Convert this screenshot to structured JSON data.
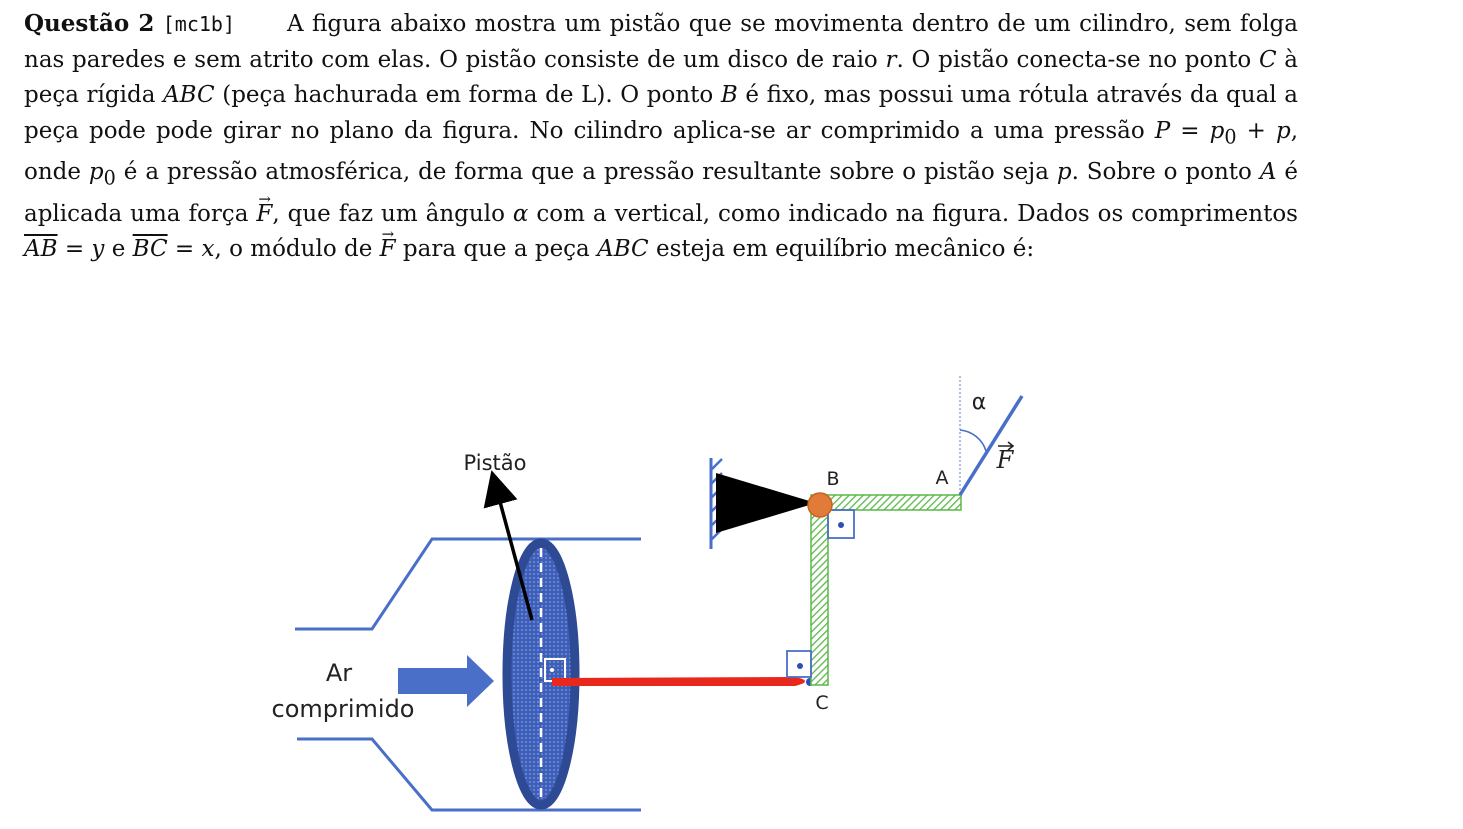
{
  "question": {
    "title": "Questão 2",
    "code": "[mc1b]",
    "t1": "A figura abaixo mostra um pistão que se movimenta dentro de um cilindro, sem folga nas paredes e sem atrito com elas. O pistão consiste de um disco de raio ",
    "v_r": "r",
    "t2": ". O pistão conecta-se no ponto ",
    "v_C": "C",
    "t3": " à peça rígida ",
    "v_ABC": "ABC",
    "t4": " (peça hachurada em forma de L). O ponto ",
    "v_B": "B",
    "t5": " é fixo, mas possui uma rótula através da qual a peça pode pode girar no plano da figura. No cilindro aplica-se ar comprimido a uma pressão ",
    "eq_P": "P = p",
    "sub0": "0",
    "eq_P2": " + p",
    "t6": ", onde ",
    "v_p0": "p",
    "sub0b": "0",
    "t7": " é a pressão atmosférica, de forma que a pressão resultante sobre o pistão seja ",
    "v_p": "p",
    "t8": ". Sobre o ponto ",
    "v_A": "A",
    "t9": " é aplicada uma força ",
    "v_F": "F",
    "t10": ", que faz um ângulo ",
    "v_alpha": "α",
    "t11": " com a vertical, como indicado na figura. Dados os comprimentos ",
    "v_AB": "AB",
    "t12": " = ",
    "v_y": "y",
    "t13": " e ",
    "v_BC": "BC",
    "t14": " = ",
    "v_x": "x",
    "t15": ", o módulo de ",
    "v_F2": "F",
    "t16": " para que a peça ",
    "v_ABC2": "ABC",
    "t17": " esteja em equilíbrio mecânico é:"
  },
  "figure": {
    "label_pistao": "Pistão",
    "label_ar": "Ar",
    "label_comprimido": "comprimido",
    "label_A": "A",
    "label_B": "B",
    "label_C": "C",
    "label_alpha": "α",
    "label_F": "F",
    "colors": {
      "cylinder": "#4a6fc8",
      "piston_fill": "#3d5fb8",
      "piston_edge": "#2f4a94",
      "rod": "#e8281c",
      "hinge": "#e07b39",
      "hatch": "#5bb848",
      "arrow": "#4a6fc8"
    }
  }
}
